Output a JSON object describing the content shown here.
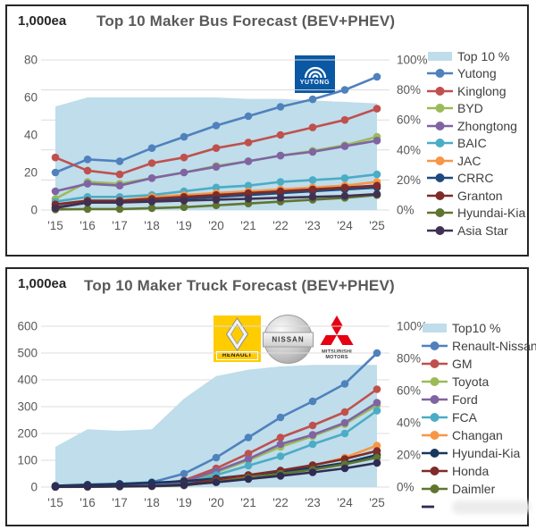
{
  "chart_data": [
    {
      "id": "bus",
      "type": "line",
      "title": "Top 10 Maker Bus Forecast (BEV+PHEV)",
      "unit_label": "1,000ea",
      "x_labels": [
        "'15",
        "'16",
        "'17",
        "'18",
        "'19",
        "'20",
        "'21",
        "'22",
        "'23",
        "'24",
        "'25"
      ],
      "left_axis": {
        "max": 80,
        "ticks": [
          0,
          20,
          40,
          60,
          80
        ]
      },
      "right_axis": {
        "max": 100,
        "ticks_percent": [
          0,
          20,
          40,
          60,
          80,
          100
        ]
      },
      "grid": "percent",
      "area": {
        "name": "Top 10 %",
        "color": "#BFDDEA",
        "axis": "right",
        "percent_values": [
          69,
          75,
          75,
          75,
          75,
          75,
          74,
          74,
          73,
          72,
          71
        ]
      },
      "series": [
        {
          "name": "Yutong",
          "color": "#4F81BD",
          "values": [
            20,
            27,
            26,
            33,
            39,
            45,
            50,
            55,
            59,
            64,
            71
          ]
        },
        {
          "name": "Kinglong",
          "color": "#C0504D",
          "values": [
            28,
            21,
            19,
            25,
            28,
            33,
            36,
            40,
            44,
            48,
            54
          ]
        },
        {
          "name": "BYD",
          "color": "#9BBB59",
          "values": [
            6,
            15,
            14,
            17,
            20,
            23.5,
            26,
            29,
            31.5,
            34.5,
            39
          ]
        },
        {
          "name": "Zhongtong",
          "color": "#8064A2",
          "values": [
            10,
            14,
            13,
            17,
            20,
            23,
            26,
            29,
            31,
            34,
            37
          ]
        },
        {
          "name": "BAIC",
          "color": "#4BACC6",
          "values": [
            4.5,
            7,
            7,
            8,
            10,
            12,
            13,
            15,
            16,
            17,
            19
          ]
        },
        {
          "name": "JAC",
          "color": "#F79646",
          "values": [
            3,
            5,
            5,
            7,
            8,
            9,
            10,
            11,
            12,
            13,
            15
          ]
        },
        {
          "name": "CRRC",
          "color": "#1F497D",
          "values": [
            1.5,
            4,
            4,
            5,
            6,
            7,
            8,
            9,
            10,
            11,
            12
          ]
        },
        {
          "name": "Granton",
          "color": "#7E2B29",
          "values": [
            3,
            5,
            5,
            6,
            7,
            8,
            9,
            10,
            11,
            12,
            13
          ]
        },
        {
          "name": "Hyundai-Kia",
          "color": "#5F7530",
          "values": [
            0.3,
            0.5,
            0.5,
            1,
            1.5,
            2.5,
            3.5,
            4.5,
            5.5,
            6.5,
            8
          ]
        },
        {
          "name": "Asia Star",
          "color": "#403152",
          "values": [
            1,
            4,
            4,
            4.5,
            5,
            5.5,
            6,
            6.5,
            7,
            7.5,
            8.5
          ]
        }
      ]
    },
    {
      "id": "truck",
      "type": "line",
      "title": "Top 10 Maker Truck Forecast (BEV+PHEV)",
      "unit_label": "1,000ea",
      "x_labels": [
        "'15",
        "'16",
        "'17",
        "'18",
        "'19",
        "'20",
        "'21",
        "'22",
        "'23",
        "'24",
        "'25"
      ],
      "left_axis": {
        "max": 600,
        "ticks": [
          0,
          100,
          200,
          300,
          400,
          500,
          600
        ]
      },
      "right_axis": {
        "max": 100,
        "ticks_percent": [
          0,
          20,
          40,
          60,
          80,
          100
        ]
      },
      "grid": "left",
      "area": {
        "name": "Top10 %",
        "color": "#BFDDEA",
        "axis": "right",
        "percent_values": [
          25,
          36,
          35,
          36,
          55,
          69,
          73,
          75,
          76,
          76,
          76
        ]
      },
      "series": [
        {
          "name": "Renault-Nissan",
          "color": "#4F81BD",
          "values": [
            5,
            8,
            12,
            18,
            50,
            110,
            185,
            260,
            320,
            385,
            500
          ]
        },
        {
          "name": "GM",
          "color": "#C0504D",
          "values": [
            2,
            4,
            6,
            10,
            25,
            70,
            125,
            185,
            230,
            280,
            365
          ]
        },
        {
          "name": "Toyota",
          "color": "#9BBB59",
          "values": [
            1,
            2,
            3,
            5,
            15,
            55,
            100,
            150,
            190,
            235,
            305
          ]
        },
        {
          "name": "Ford",
          "color": "#8064A2",
          "values": [
            2,
            3,
            5,
            8,
            20,
            60,
            105,
            160,
            195,
            240,
            315
          ]
        },
        {
          "name": "FCA",
          "color": "#4BACC6",
          "values": [
            1,
            2,
            3,
            5,
            12,
            45,
            80,
            115,
            160,
            200,
            285
          ]
        },
        {
          "name": "Changan",
          "color": "#F79646",
          "values": [
            1,
            2,
            3,
            4,
            8,
            25,
            40,
            60,
            80,
            110,
            155
          ]
        },
        {
          "name": "Hyundai-Kia",
          "color": "#17375E",
          "values": [
            5,
            9,
            12,
            16,
            22,
            32,
            45,
            58,
            72,
            90,
            120
          ]
        },
        {
          "name": "Honda",
          "color": "#7E2B29",
          "values": [
            1,
            2,
            3,
            4,
            10,
            28,
            45,
            62,
            82,
            105,
            135
          ]
        },
        {
          "name": "Daimler",
          "color": "#5F7530",
          "values": [
            0.5,
            1,
            2,
            3,
            6,
            20,
            35,
            50,
            65,
            85,
            110
          ]
        },
        {
          "name": "",
          "color": "#2E2C54",
          "obscured": true,
          "values": [
            1,
            2,
            3,
            4,
            8,
            18,
            30,
            42,
            55,
            70,
            90
          ]
        }
      ]
    }
  ],
  "logos": {
    "yutong": {
      "text": "YUTONG"
    },
    "renault": {
      "text": "RENAULT"
    },
    "nissan": {
      "text": "NISSAN"
    },
    "mitsubishi": {
      "line1": "MITSUBISHI",
      "line2": "MOTORS"
    }
  }
}
